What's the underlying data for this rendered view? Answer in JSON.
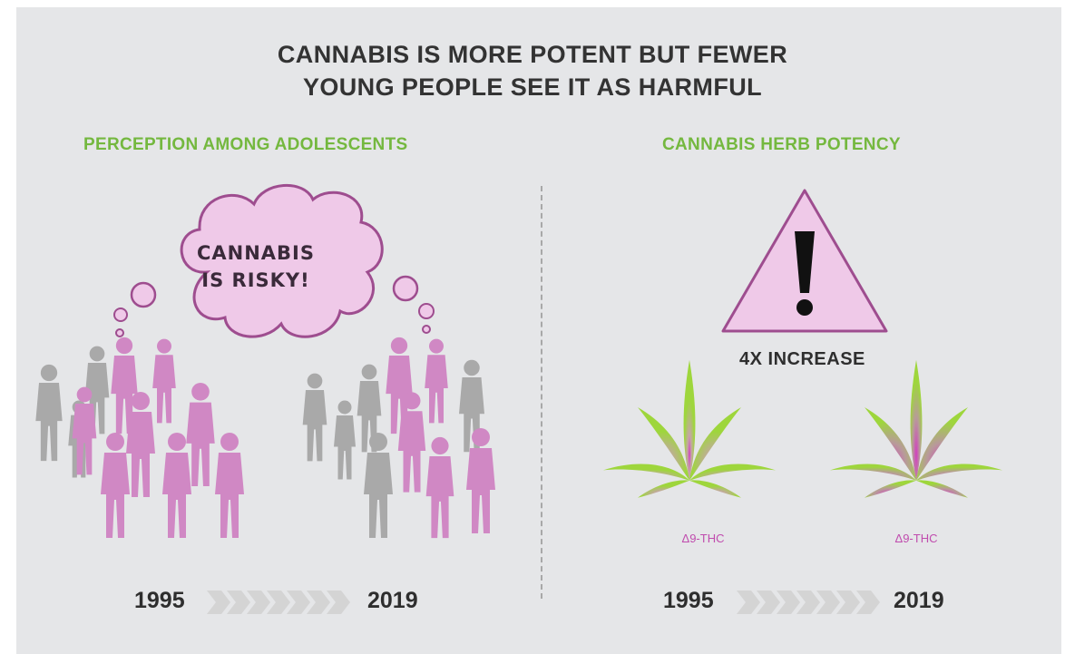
{
  "header": {
    "title_line1": "CANNABIS IS MORE POTENT BUT FEWER",
    "title_line2": "YOUNG PEOPLE SEE IT AS HARMFUL"
  },
  "left_section": {
    "title": "PERCEPTION AMONG ADOLESCENTS",
    "bubble_line1": "CANNABIS",
    "bubble_line2": "IS RISKY!",
    "year_start": "1995",
    "year_end": "2019"
  },
  "right_section": {
    "title": "CANNABIS HERB POTENCY",
    "increase_label": "4X INCREASE",
    "leaf_label_1995": "Δ9-THC",
    "leaf_label_2019": "Δ9-THC",
    "year_start": "1995",
    "year_end": "2019"
  },
  "colors": {
    "background": "#e5e6e8",
    "pink": "#d088c4",
    "gray_person": "#a9a9a9",
    "green_title": "#74b83f",
    "bubble_fill": "#efc9e8",
    "bubble_stroke": "#9e4d8f",
    "arrow": "#d4d4d4"
  },
  "icons": [
    "thought-bubble-icon",
    "warning-triangle-icon",
    "cannabis-leaf-icon",
    "person-silhouette-icon",
    "chevron-right-icon"
  ]
}
